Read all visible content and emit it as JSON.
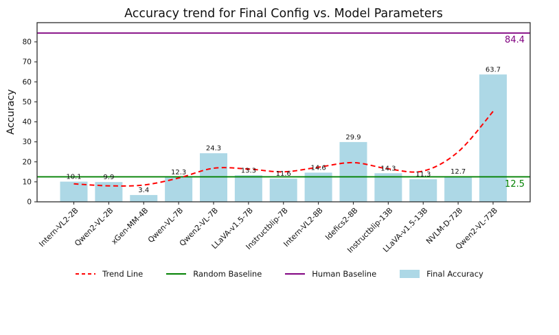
{
  "chart_data": {
    "type": "bar",
    "title": "Accuracy trend for Final Config vs. Model Parameters",
    "xlabel": "",
    "ylabel": "Accuracy",
    "categories": [
      "Intern-VL2-2B",
      "Qwen2-VL-2B",
      "xGen-MM-4B",
      "Qwen-VL-7B",
      "Qwen2-VL-7B",
      "LLaVA-v1.5-7B",
      "Instructblip-7B",
      "Intern-VL2-8B",
      "Idefics2-8B",
      "Instructblip-13B",
      "LLaVA-v1.5-13B",
      "NVLM-D-72B",
      "Qwen2-VL-72B"
    ],
    "values": [
      10.1,
      9.9,
      3.4,
      12.3,
      24.3,
      13.3,
      11.6,
      14.6,
      29.9,
      14.3,
      11.3,
      12.7,
      63.7
    ],
    "series": [
      {
        "name": "Final Accuracy",
        "type": "bar",
        "values": [
          10.1,
          9.9,
          3.4,
          12.3,
          24.3,
          13.3,
          11.6,
          14.6,
          29.9,
          14.3,
          11.3,
          12.7,
          63.7
        ]
      },
      {
        "name": "Trend Line",
        "type": "line",
        "values": [
          9.0,
          8.0,
          8.4,
          11.9,
          16.8,
          16.4,
          15.0,
          17.3,
          19.6,
          16.5,
          15.4,
          25.0,
          45.2
        ]
      }
    ],
    "trend_values": [
      9.0,
      8.0,
      8.4,
      11.9,
      16.8,
      16.4,
      15.0,
      17.3,
      19.6,
      16.5,
      15.4,
      25.0,
      45.2
    ],
    "baselines": [
      {
        "name": "random-baseline",
        "legend": "Random Baseline",
        "label": "12.5",
        "value": 12.5,
        "color": "#008000"
      },
      {
        "name": "human-baseline",
        "legend": "Human Baseline",
        "label": "84.4",
        "value": 84.4,
        "color": "#800080"
      }
    ],
    "yticks": [
      0,
      10,
      20,
      30,
      40,
      50,
      60,
      70,
      80
    ],
    "ylim": [
      0,
      89.6
    ],
    "grid": false,
    "legend_position": "bottom-center",
    "legend": [
      {
        "label": "Trend Line",
        "swatch": "dashed-line",
        "color": "#FF0000"
      },
      {
        "label": "Random Baseline",
        "swatch": "line",
        "color": "#008000"
      },
      {
        "label": "Human Baseline",
        "swatch": "line",
        "color": "#800080"
      },
      {
        "label": "Final Accuracy",
        "swatch": "patch",
        "color": "#ADD8E6"
      }
    ],
    "colors": {
      "bar": "#ADD8E6",
      "trend": "#FF0000",
      "random_baseline": "#008000",
      "human_baseline": "#800080",
      "axis": "#2b2b2b",
      "text": "#111111"
    }
  }
}
